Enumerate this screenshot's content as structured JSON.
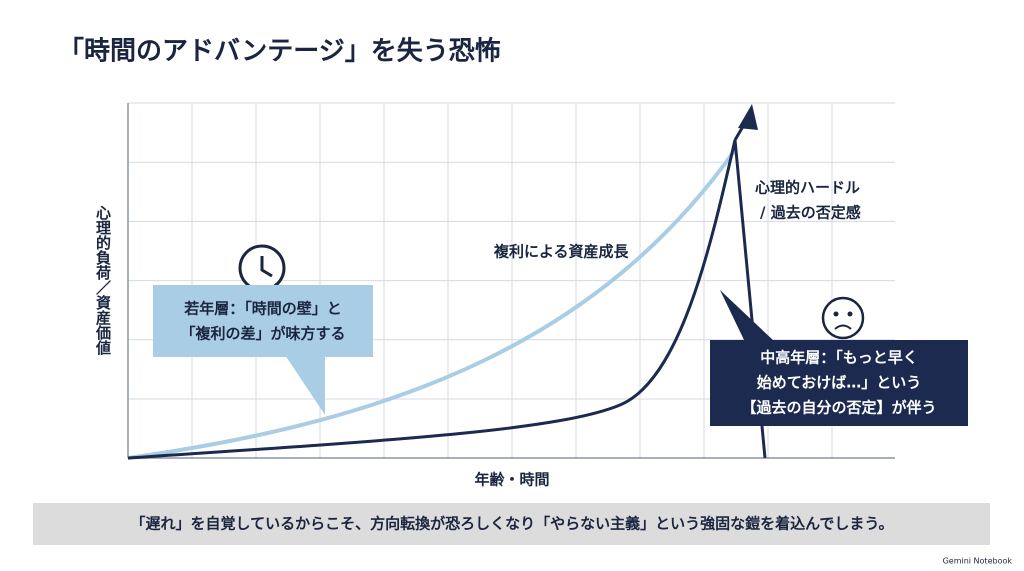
{
  "title": "「時間のアドバンテージ」を失う恐怖",
  "y_axis_label": "心理的負荷／資産価値",
  "x_axis_label": "年齢・時間",
  "curve_label": "複利による資産成長",
  "hurdle_label": [
    "心理的ハードル",
    "/ 過去の否定感"
  ],
  "young_callout": [
    "若年層：「時間の壁」と",
    "「複利の差」が味方する"
  ],
  "middle_callout": [
    "中高年層：「もっと早く",
    "始めておけば…」という",
    "【過去の自分の否定】が伴う"
  ],
  "footer": "「遅れ」を自覚しているからこそ、方向転換が恐ろしくなり「やらない主義」という強固な鎧を着込んでしまう。",
  "brand": "Gemini Notebook"
}
